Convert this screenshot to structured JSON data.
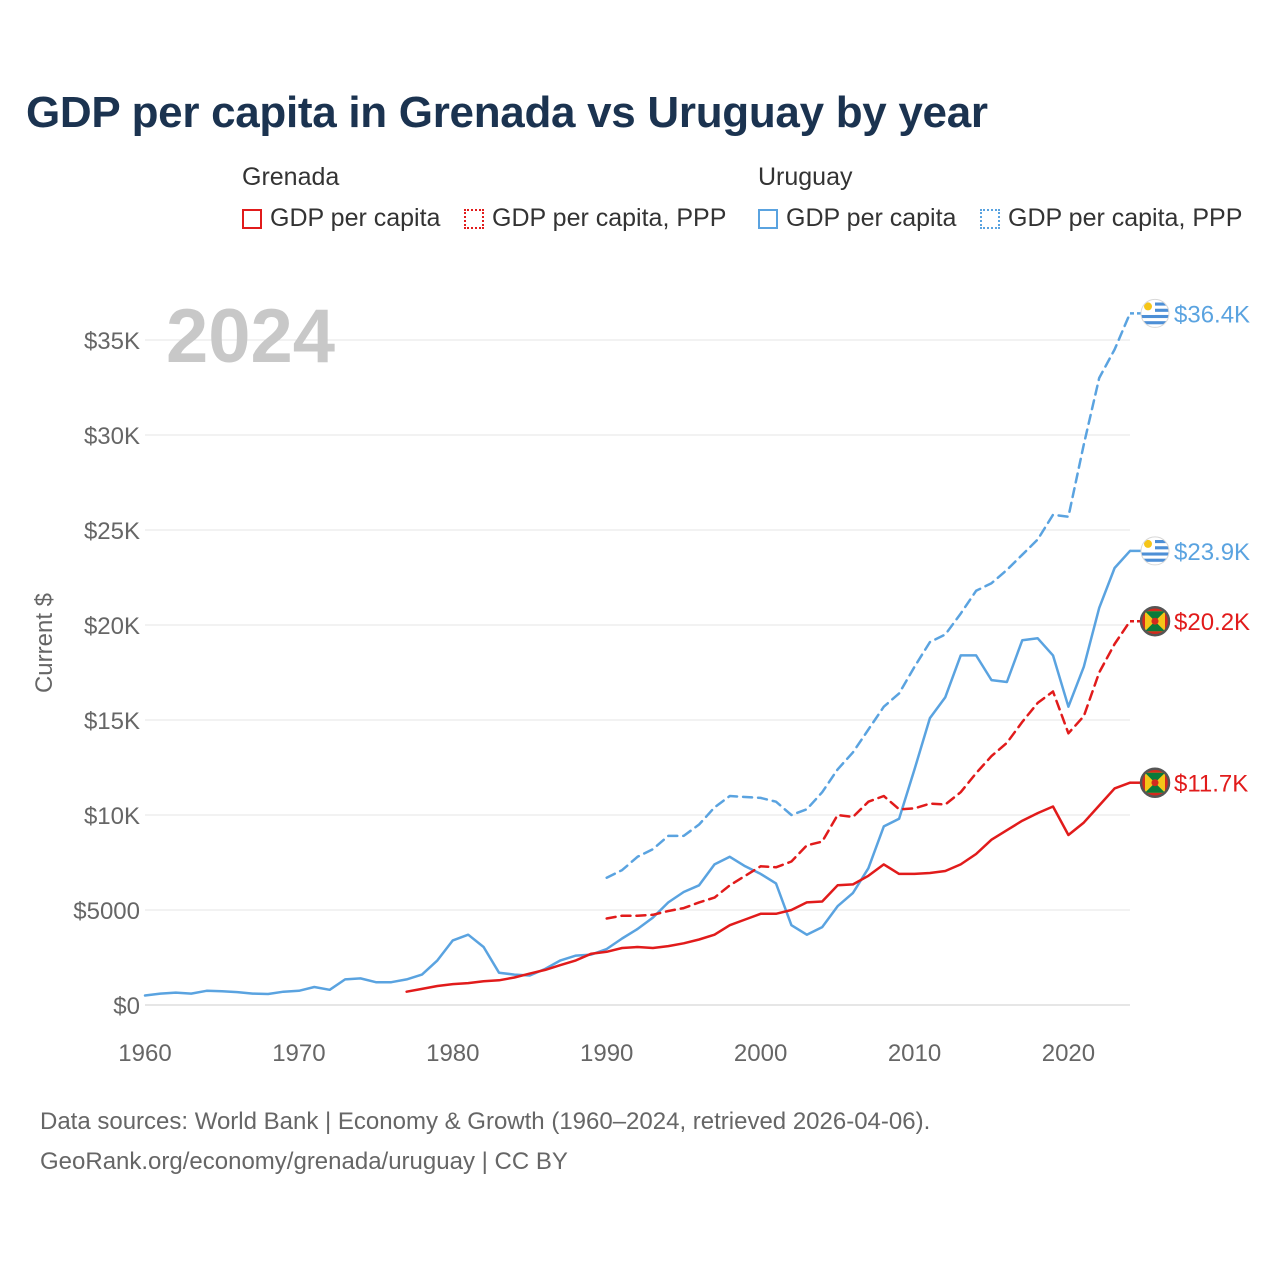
{
  "title": "GDP per capita in Grenada vs Uruguay by year",
  "legend": {
    "groups": [
      {
        "country": "Grenada",
        "items": [
          "GDP per capita",
          "GDP per capita, PPP"
        ]
      },
      {
        "country": "Uruguay",
        "items": [
          "GDP per capita",
          "GDP per capita, PPP"
        ]
      }
    ]
  },
  "colors": {
    "grenada": "#e11b1b",
    "uruguay": "#5aa3e0",
    "grid": "#e4e4e4",
    "axis_text": "#666666",
    "year_watermark": "#c8c8c8"
  },
  "footer": {
    "line1": "Data sources: World Bank | Economy & Growth (1960–2024, retrieved 2026-04-06).",
    "line2": "GeoRank.org/economy/grenada/uruguay | CC BY"
  },
  "chart_data": {
    "type": "line",
    "title": "GDP per capita in Grenada vs Uruguay by year",
    "year_label": "2024",
    "xlabel": "",
    "ylabel": "Current $",
    "xlim": [
      1960,
      2024
    ],
    "ylim": [
      0,
      37000
    ],
    "x_ticks": [
      1960,
      1970,
      1980,
      1990,
      2000,
      2010,
      2020
    ],
    "x_tick_labels": [
      "1960",
      "1970",
      "1980",
      "1990",
      "2000",
      "2010",
      "2020"
    ],
    "y_ticks": [
      0,
      5000,
      10000,
      15000,
      20000,
      25000,
      30000,
      35000
    ],
    "y_tick_labels": [
      "$0",
      "$5000",
      "$10K",
      "$15K",
      "$20K",
      "$25K",
      "$30K",
      "$35K"
    ],
    "grid": true,
    "series": [
      {
        "name": "Uruguay GDP per capita, PPP",
        "country": "Uruguay",
        "color": "#5aa3e0",
        "dash": true,
        "end_label": "$36.4K",
        "x": [
          1990,
          1991,
          1992,
          1993,
          1994,
          1995,
          1996,
          1997,
          1998,
          1999,
          2000,
          2001,
          2002,
          2003,
          2004,
          2005,
          2006,
          2007,
          2008,
          2009,
          2010,
          2011,
          2012,
          2013,
          2014,
          2015,
          2016,
          2017,
          2018,
          2019,
          2020,
          2021,
          2022,
          2023,
          2024
        ],
        "values": [
          6700,
          7100,
          7800,
          8200,
          8900,
          8900,
          9500,
          10400,
          11000,
          10950,
          10900,
          10700,
          10000,
          10300,
          11200,
          12400,
          13300,
          14500,
          15700,
          16400,
          17800,
          19100,
          19500,
          20600,
          21800,
          22200,
          22900,
          23700,
          24500,
          25800,
          25700,
          29500,
          33000,
          34500,
          36400
        ]
      },
      {
        "name": "Uruguay GDP per capita",
        "country": "Uruguay",
        "color": "#5aa3e0",
        "dash": false,
        "end_label": "$23.9K",
        "x": [
          1960,
          1961,
          1962,
          1963,
          1964,
          1965,
          1966,
          1967,
          1968,
          1969,
          1970,
          1971,
          1972,
          1973,
          1974,
          1975,
          1976,
          1977,
          1978,
          1979,
          1980,
          1981,
          1982,
          1983,
          1984,
          1985,
          1986,
          1987,
          1988,
          1989,
          1990,
          1991,
          1992,
          1993,
          1994,
          1995,
          1996,
          1997,
          1998,
          1999,
          2000,
          2001,
          2002,
          2003,
          2004,
          2005,
          2006,
          2007,
          2008,
          2009,
          2010,
          2011,
          2012,
          2013,
          2014,
          2015,
          2016,
          2017,
          2018,
          2019,
          2020,
          2021,
          2022,
          2023,
          2024
        ],
        "values": [
          500,
          600,
          650,
          600,
          750,
          720,
          680,
          600,
          580,
          700,
          750,
          950,
          800,
          1350,
          1400,
          1200,
          1200,
          1350,
          1600,
          2350,
          3400,
          3700,
          3050,
          1700,
          1600,
          1550,
          1900,
          2350,
          2600,
          2650,
          2950,
          3500,
          4000,
          4600,
          5400,
          5950,
          6300,
          7400,
          7800,
          7300,
          6900,
          6400,
          4200,
          3700,
          4100,
          5200,
          5900,
          7200,
          9400,
          9800,
          12400,
          15100,
          16200,
          18400,
          18400,
          17100,
          17000,
          19200,
          19300,
          18400,
          15700,
          17800,
          20900,
          23000,
          23900
        ]
      },
      {
        "name": "Grenada GDP per capita, PPP",
        "country": "Grenada",
        "color": "#e11b1b",
        "dash": true,
        "end_label": "$20.2K",
        "x": [
          1990,
          1991,
          1992,
          1993,
          1994,
          1995,
          1996,
          1997,
          1998,
          1999,
          2000,
          2001,
          2002,
          2003,
          2004,
          2005,
          2006,
          2007,
          2008,
          2009,
          2010,
          2011,
          2012,
          2013,
          2014,
          2015,
          2016,
          2017,
          2018,
          2019,
          2020,
          2021,
          2022,
          2023,
          2024
        ],
        "values": [
          4550,
          4700,
          4700,
          4750,
          4950,
          5100,
          5400,
          5650,
          6300,
          6800,
          7300,
          7250,
          7550,
          8400,
          8600,
          10000,
          9900,
          10700,
          11000,
          10300,
          10350,
          10600,
          10550,
          11200,
          12200,
          13100,
          13800,
          14900,
          15900,
          16500,
          14300,
          15200,
          17500,
          19000,
          20200
        ]
      },
      {
        "name": "Grenada GDP per capita",
        "country": "Grenada",
        "color": "#e11b1b",
        "dash": false,
        "end_label": "$11.7K",
        "x": [
          1977,
          1978,
          1979,
          1980,
          1981,
          1982,
          1983,
          1984,
          1985,
          1986,
          1987,
          1988,
          1989,
          1990,
          1991,
          1992,
          1993,
          1994,
          1995,
          1996,
          1997,
          1998,
          1999,
          2000,
          2001,
          2002,
          2003,
          2004,
          2005,
          2006,
          2007,
          2008,
          2009,
          2010,
          2011,
          2012,
          2013,
          2014,
          2015,
          2016,
          2017,
          2018,
          2019,
          2020,
          2021,
          2022,
          2023,
          2024
        ],
        "values": [
          700,
          850,
          1000,
          1100,
          1150,
          1250,
          1300,
          1450,
          1650,
          1850,
          2100,
          2350,
          2700,
          2800,
          3000,
          3050,
          3000,
          3100,
          3250,
          3450,
          3700,
          4200,
          4500,
          4800,
          4800,
          5000,
          5400,
          5450,
          6300,
          6350,
          6800,
          7400,
          6900,
          6900,
          6950,
          7050,
          7400,
          7950,
          8700,
          9200,
          9700,
          10100,
          10450,
          8950,
          9600,
          10500,
          11400,
          11700
        ]
      }
    ]
  }
}
